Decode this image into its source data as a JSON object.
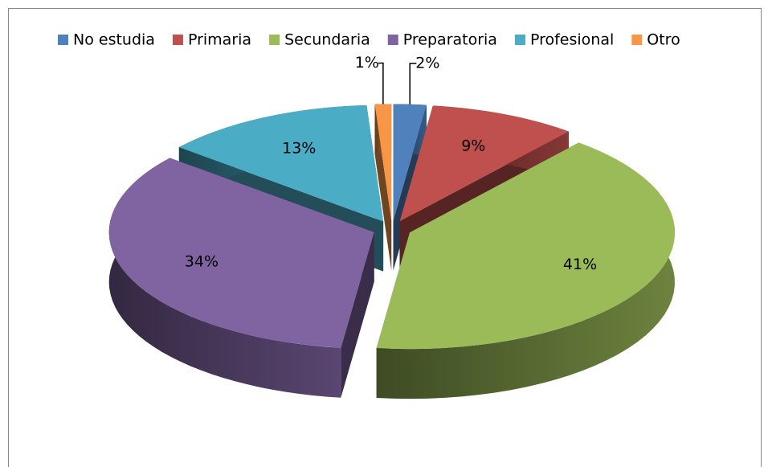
{
  "chart_data": {
    "type": "pie",
    "three_d": true,
    "exploded": true,
    "categories": [
      "No estudia",
      "Primaria",
      "Secundaria",
      "Preparatoria",
      "Profesional",
      "Otro"
    ],
    "values": [
      2,
      9,
      41,
      34,
      13,
      1
    ],
    "value_labels": [
      "2%",
      "9%",
      "41%",
      "34%",
      "13%",
      "1%"
    ],
    "colors": [
      "#4f81bd",
      "#c0504d",
      "#9bbb59",
      "#8064a2",
      "#4bacc6",
      "#f79646"
    ],
    "legend": "top"
  }
}
